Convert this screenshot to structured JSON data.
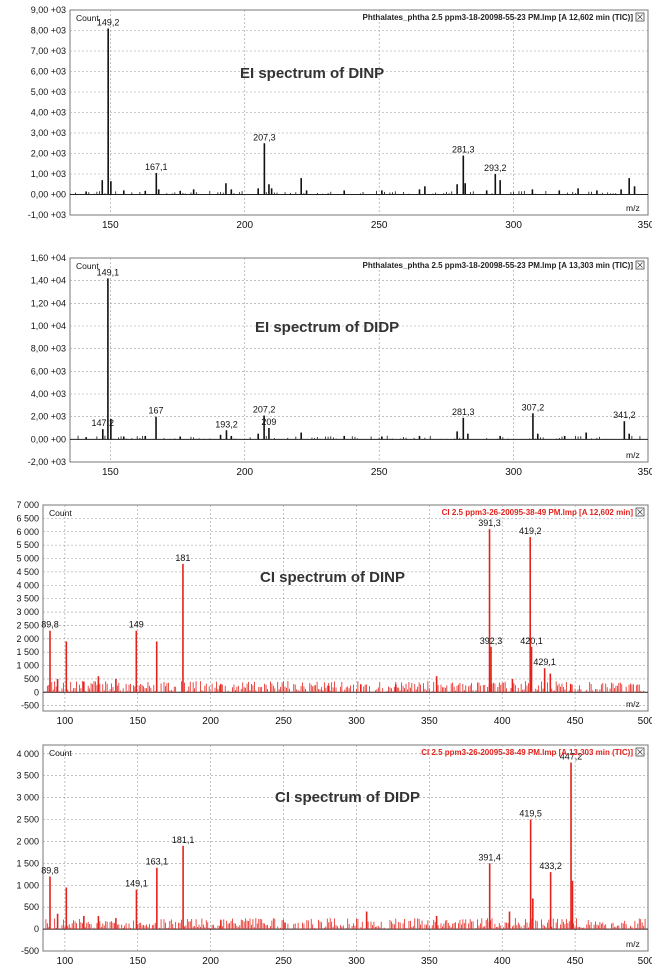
{
  "colors": {
    "ei": "#111111",
    "ci": "#e4221c",
    "grid": "#9a9a9a"
  },
  "chart_data": [
    {
      "type": "bar",
      "title": "EI spectrum of DINP",
      "info": "Phthalates_phtha 2.5 ppm3-18-20098-55-23 PM.lmp [A 12,602 min (TIC)]",
      "ylabel": "Count",
      "xlabel": "m/z",
      "xlim": [
        135,
        350
      ],
      "ylim": [
        -1000,
        9000
      ],
      "xticks": [
        150,
        200,
        250,
        300,
        350
      ],
      "yticks": [
        -1000,
        0,
        1000,
        2000,
        3000,
        4000,
        5000,
        6000,
        7000,
        8000,
        9000
      ],
      "ytick_labels": [
        "-1,00 +03",
        "0,00 +00",
        "1,00 +03",
        "2,00 +03",
        "3,00 +03",
        "4,00 +03",
        "5,00 +03",
        "6,00 +03",
        "7,00 +03",
        "8,00 +03",
        "9,00 +03"
      ],
      "peaks": [
        {
          "x": 149.2,
          "y": 8100,
          "label": "149,2"
        },
        {
          "x": 167.1,
          "y": 1050,
          "label": "167,1"
        },
        {
          "x": 207.3,
          "y": 2500,
          "label": "207,3"
        },
        {
          "x": 281.3,
          "y": 1900,
          "label": "281,3"
        },
        {
          "x": 293.2,
          "y": 1000,
          "label": "293,2"
        },
        {
          "x": 147,
          "y": 700
        },
        {
          "x": 150.2,
          "y": 650
        },
        {
          "x": 141,
          "y": 150
        },
        {
          "x": 155,
          "y": 200
        },
        {
          "x": 163,
          "y": 180
        },
        {
          "x": 168,
          "y": 250
        },
        {
          "x": 176,
          "y": 180
        },
        {
          "x": 181,
          "y": 250
        },
        {
          "x": 193,
          "y": 550
        },
        {
          "x": 195,
          "y": 250
        },
        {
          "x": 205,
          "y": 300
        },
        {
          "x": 209,
          "y": 500
        },
        {
          "x": 210,
          "y": 300
        },
        {
          "x": 221,
          "y": 800
        },
        {
          "x": 223,
          "y": 200
        },
        {
          "x": 237,
          "y": 200
        },
        {
          "x": 251,
          "y": 200
        },
        {
          "x": 265,
          "y": 250
        },
        {
          "x": 267,
          "y": 400
        },
        {
          "x": 279,
          "y": 500
        },
        {
          "x": 282,
          "y": 550
        },
        {
          "x": 290,
          "y": 200
        },
        {
          "x": 295,
          "y": 700
        },
        {
          "x": 307,
          "y": 250
        },
        {
          "x": 317,
          "y": 200
        },
        {
          "x": 324,
          "y": 300
        },
        {
          "x": 331,
          "y": 200
        },
        {
          "x": 340,
          "y": 250
        },
        {
          "x": 343,
          "y": 800
        },
        {
          "x": 345,
          "y": 400
        }
      ]
    },
    {
      "type": "bar",
      "title": "EI spectrum of DIDP",
      "info": "Phthalates_phtha 2.5 ppm3-18-20098-55-23 PM.lmp [A 13,303 min (TIC)]",
      "ylabel": "Count",
      "xlabel": "m/z",
      "xlim": [
        135,
        350
      ],
      "ylim": [
        -2000,
        16000
      ],
      "xticks": [
        150,
        200,
        250,
        300,
        350
      ],
      "yticks": [
        -2000,
        0,
        2000,
        4000,
        6000,
        8000,
        10000,
        12000,
        14000,
        16000
      ],
      "ytick_labels": [
        "-2,00 +03",
        "0,00 +00",
        "2,00 +03",
        "4,00 +03",
        "6,00 +03",
        "8,00 +03",
        "1,00 +04",
        "1,20 +04",
        "1,40 +04",
        "1,60 +04"
      ],
      "peaks": [
        {
          "x": 149.1,
          "y": 14200,
          "label": "149,1"
        },
        {
          "x": 147.2,
          "y": 900,
          "label": "147,2"
        },
        {
          "x": 167,
          "y": 2000,
          "label": "167"
        },
        {
          "x": 193.2,
          "y": 800,
          "label": "193,2"
        },
        {
          "x": 207.2,
          "y": 2100,
          "label": "207,2"
        },
        {
          "x": 209,
          "y": 1000,
          "label": "209"
        },
        {
          "x": 281.3,
          "y": 1900,
          "label": "281,3"
        },
        {
          "x": 307.2,
          "y": 2300,
          "label": "307,2"
        },
        {
          "x": 341.2,
          "y": 1600,
          "label": "341,2"
        },
        {
          "x": 150.2,
          "y": 1800
        },
        {
          "x": 141,
          "y": 200
        },
        {
          "x": 155,
          "y": 250
        },
        {
          "x": 163,
          "y": 300
        },
        {
          "x": 176,
          "y": 250
        },
        {
          "x": 191,
          "y": 400
        },
        {
          "x": 195,
          "y": 300
        },
        {
          "x": 205,
          "y": 500
        },
        {
          "x": 221,
          "y": 600
        },
        {
          "x": 237,
          "y": 300
        },
        {
          "x": 251,
          "y": 250
        },
        {
          "x": 265,
          "y": 300
        },
        {
          "x": 279,
          "y": 700
        },
        {
          "x": 283,
          "y": 500
        },
        {
          "x": 295,
          "y": 300
        },
        {
          "x": 309,
          "y": 500
        },
        {
          "x": 319,
          "y": 300
        },
        {
          "x": 327,
          "y": 600
        },
        {
          "x": 343,
          "y": 500
        }
      ]
    },
    {
      "type": "bar",
      "title": "CI spectrum of DINP",
      "info": "CI 2.5 ppm3-26-20095-38-49 PM.lmp [A 12,602 min]",
      "ylabel": "Count",
      "xlabel": "m/z",
      "xlim": [
        85,
        500
      ],
      "ylim": [
        -700,
        7000
      ],
      "xticks": [
        100,
        150,
        200,
        250,
        300,
        350,
        400,
        450,
        500
      ],
      "yticks": [
        -500,
        0,
        500,
        1000,
        1500,
        2000,
        2500,
        3000,
        3500,
        4000,
        4500,
        5000,
        5500,
        6000,
        6500,
        7000
      ],
      "ytick_labels": [
        "-500",
        "0",
        "500",
        "1 000",
        "1 500",
        "2 000",
        "2 500",
        "3 000",
        "3 500",
        "4 000",
        "4 500",
        "5 000",
        "5 500",
        "6 000",
        "6 500",
        "7 000"
      ],
      "peaks": [
        {
          "x": 89.8,
          "y": 2300,
          "label": "89,8"
        },
        {
          "x": 149,
          "y": 2300,
          "label": "149"
        },
        {
          "x": 181,
          "y": 4800,
          "label": "181"
        },
        {
          "x": 391.3,
          "y": 6100,
          "label": "391,3"
        },
        {
          "x": 392.3,
          "y": 1700,
          "label": "392,3"
        },
        {
          "x": 419.2,
          "y": 5800,
          "label": "419,2"
        },
        {
          "x": 420.1,
          "y": 1700,
          "label": "420,1"
        },
        {
          "x": 429.1,
          "y": 900,
          "label": "429,1"
        },
        {
          "x": 101,
          "y": 1900
        },
        {
          "x": 163,
          "y": 1900
        },
        {
          "x": 123,
          "y": 600
        },
        {
          "x": 135,
          "y": 500
        },
        {
          "x": 355,
          "y": 600
        },
        {
          "x": 407,
          "y": 500
        },
        {
          "x": 433,
          "y": 700
        },
        {
          "x": 447,
          "y": 300
        },
        {
          "x": 95,
          "y": 500
        },
        {
          "x": 113,
          "y": 400
        },
        {
          "x": 207,
          "y": 300
        },
        {
          "x": 281,
          "y": 250
        },
        {
          "x": 303,
          "y": 300
        },
        {
          "x": 327,
          "y": 300
        }
      ]
    },
    {
      "type": "bar",
      "title": "CI spectrum of DIDP",
      "info": "CI 2.5 ppm3-26-20095-38-49 PM.lmp [A 13,303 min (TIC)]",
      "ylabel": "Count",
      "xlabel": "m/z",
      "xlim": [
        85,
        500
      ],
      "ylim": [
        -500,
        4200
      ],
      "xticks": [
        100,
        150,
        200,
        250,
        300,
        350,
        400,
        450,
        500
      ],
      "yticks": [
        -500,
        0,
        500,
        1000,
        1500,
        2000,
        2500,
        3000,
        3500,
        4000
      ],
      "ytick_labels": [
        "-500",
        "0",
        "500",
        "1 000",
        "1 500",
        "2 000",
        "2 500",
        "3 000",
        "3 500",
        "4 000"
      ],
      "peaks": [
        {
          "x": 89.8,
          "y": 1200,
          "label": "89,8"
        },
        {
          "x": 149.1,
          "y": 900,
          "label": "149,1"
        },
        {
          "x": 163.1,
          "y": 1400,
          "label": "163,1"
        },
        {
          "x": 181.1,
          "y": 1900,
          "label": "181,1"
        },
        {
          "x": 391.4,
          "y": 1500,
          "label": "391,4"
        },
        {
          "x": 419.5,
          "y": 2500,
          "label": "419,5"
        },
        {
          "x": 433.2,
          "y": 1300,
          "label": "433,2"
        },
        {
          "x": 447.2,
          "y": 3800,
          "label": "447,2"
        },
        {
          "x": 101,
          "y": 950
        },
        {
          "x": 123,
          "y": 300
        },
        {
          "x": 135,
          "y": 250
        },
        {
          "x": 307,
          "y": 400
        },
        {
          "x": 355,
          "y": 300
        },
        {
          "x": 405,
          "y": 400
        },
        {
          "x": 421,
          "y": 700
        },
        {
          "x": 448.2,
          "y": 1100
        },
        {
          "x": 95,
          "y": 350
        },
        {
          "x": 113,
          "y": 300
        },
        {
          "x": 207,
          "y": 200
        },
        {
          "x": 251,
          "y": 150
        }
      ]
    }
  ]
}
